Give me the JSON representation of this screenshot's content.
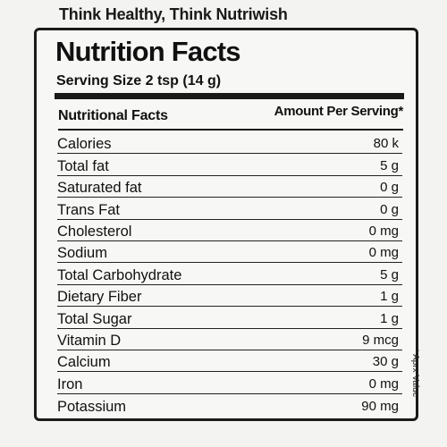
{
  "tagline": "Think Healthy, Think Nutriwish",
  "title": "Nutrition Facts",
  "serving": "Serving Size 2 tsp (14 g)",
  "header": {
    "left": "Nutritional Facts",
    "right": "Amount Per Serving*"
  },
  "rows": [
    {
      "name": "Calories",
      "amount": "80 k"
    },
    {
      "name": "Total fat",
      "amount": "5 g"
    },
    {
      "name": "Saturated fat",
      "amount": "0 g"
    },
    {
      "name": "Trans Fat",
      "amount": "0 g"
    },
    {
      "name": "Cholesterol",
      "amount": "0 mg"
    },
    {
      "name": "Sodium",
      "amount": "0 mg"
    },
    {
      "name": "Total Carbohydrate",
      "amount": "5 g"
    },
    {
      "name": "Dietary Fiber",
      "amount": "1 g"
    },
    {
      "name": "Total Sugar",
      "amount": "1 g"
    },
    {
      "name": "Vitamin D",
      "amount": "9 mcg"
    },
    {
      "name": "Calcium",
      "amount": "30 g"
    },
    {
      "name": "Iron",
      "amount": "0 mg"
    },
    {
      "name": "Potassium",
      "amount": "90 mg"
    }
  ],
  "side_note": "* Aprx Value"
}
